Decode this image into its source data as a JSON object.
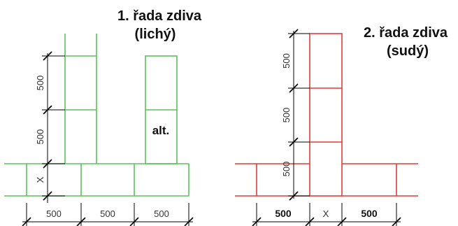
{
  "left_panel": {
    "title_line1": "1. řada zdiva",
    "title_line2": "(lichý)",
    "color": "#5cc15c",
    "vertical_dims": [
      "500",
      "500",
      "X"
    ],
    "horizontal_dims": [
      "500",
      "500",
      "500"
    ],
    "alt_label": "alt."
  },
  "right_panel": {
    "title_line1": "2. řada zdiva",
    "title_line2": "(sudý)",
    "color": "#e23b3b",
    "vertical_dims": [
      "500",
      "500",
      "500"
    ],
    "horizontal_dims": [
      "500",
      "X",
      "500"
    ]
  }
}
